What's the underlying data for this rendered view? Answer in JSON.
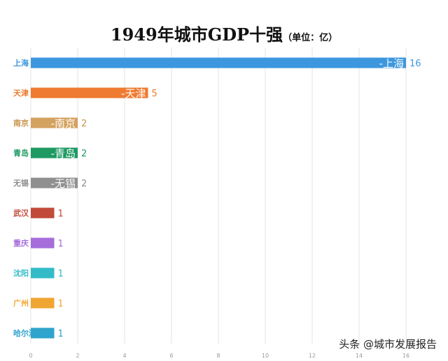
{
  "chart_data": {
    "type": "bar",
    "orientation": "horizontal",
    "title": "1949年城市GDP十强",
    "unit": "（单位：亿）",
    "categories": [
      "上海",
      "天津",
      "南京",
      "青岛",
      "无锡",
      "武汉",
      "重庆",
      "沈阳",
      "广州",
      "哈尔滨"
    ],
    "values": [
      16,
      5,
      2,
      2,
      2,
      1,
      1,
      1,
      1,
      1
    ],
    "in_bar_labels": [
      "-上海",
      "-天津",
      "-南京",
      "-青岛",
      "-无锡",
      "",
      "",
      "",
      "",
      ""
    ],
    "colors": [
      "#3d97de",
      "#ee7b31",
      "#d4a25f",
      "#1f9a62",
      "#8f8f8f",
      "#c14a3b",
      "#a66ddb",
      "#33bcc8",
      "#f0a632",
      "#2fa4cc"
    ],
    "label_colors": [
      "#3d97de",
      "#ee7b31",
      "#c8954d",
      "#1f9a62",
      "#8f8f8f",
      "#c14a3b",
      "#a66ddb",
      "#33bcc8",
      "#f0a632",
      "#2fa4cc"
    ],
    "xlim": [
      0,
      17
    ],
    "xticks": [
      0,
      2,
      4,
      6,
      8,
      10,
      12,
      14,
      16
    ],
    "grid": true,
    "legend": "none"
  },
  "watermark": "头条 @城市发展报告"
}
